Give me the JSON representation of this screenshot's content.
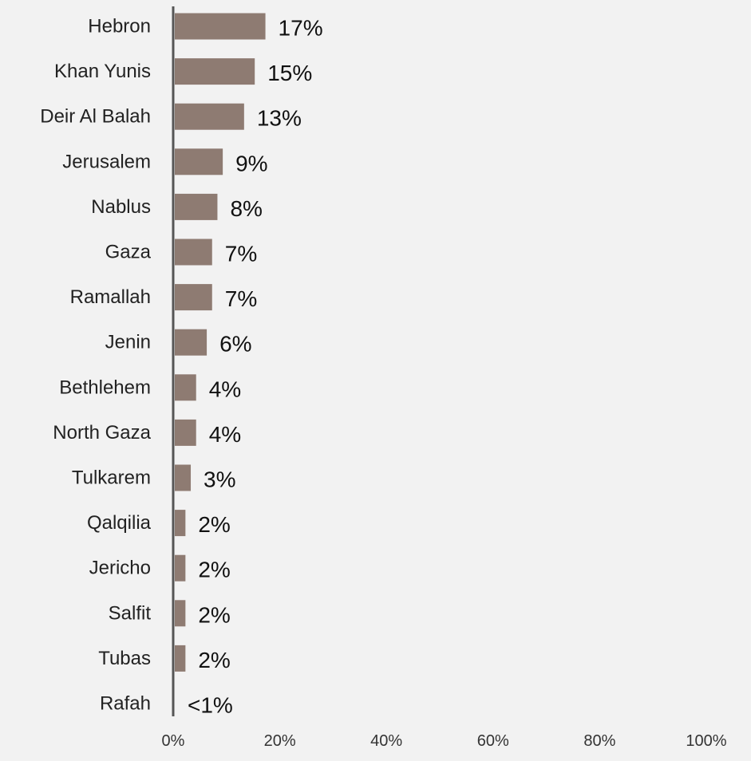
{
  "chart_data": {
    "type": "bar",
    "orientation": "horizontal",
    "title": "",
    "xlabel": "",
    "ylabel": "",
    "categories": [
      "Hebron",
      "Khan Yunis",
      "Deir Al Balah",
      "Jerusalem",
      "Nablus",
      "Gaza",
      "Ramallah",
      "Jenin",
      "Bethlehem",
      "North Gaza",
      "Tulkarem",
      "Qalqilia",
      "Jericho",
      "Salfit",
      "Tubas",
      "Rafah"
    ],
    "values": [
      17,
      15,
      13,
      9,
      8,
      7,
      7,
      6,
      4,
      4,
      3,
      2,
      2,
      2,
      2,
      0
    ],
    "data_labels": [
      "17%",
      "15%",
      "13%",
      "9%",
      "8%",
      "7%",
      "7%",
      "6%",
      "4%",
      "4%",
      "3%",
      "2%",
      "2%",
      "2%",
      "2%",
      "<1%"
    ],
    "xlim": [
      0,
      100
    ],
    "x_ticks": [
      0,
      20,
      40,
      60,
      80,
      100
    ],
    "x_tick_labels": [
      "0%",
      "20%",
      "40%",
      "60%",
      "80%",
      "100%"
    ],
    "grid": false,
    "legend": "none",
    "colors": {
      "bar": "#8e7b72",
      "axis": "#555555",
      "background": "#f2f2f2"
    }
  }
}
